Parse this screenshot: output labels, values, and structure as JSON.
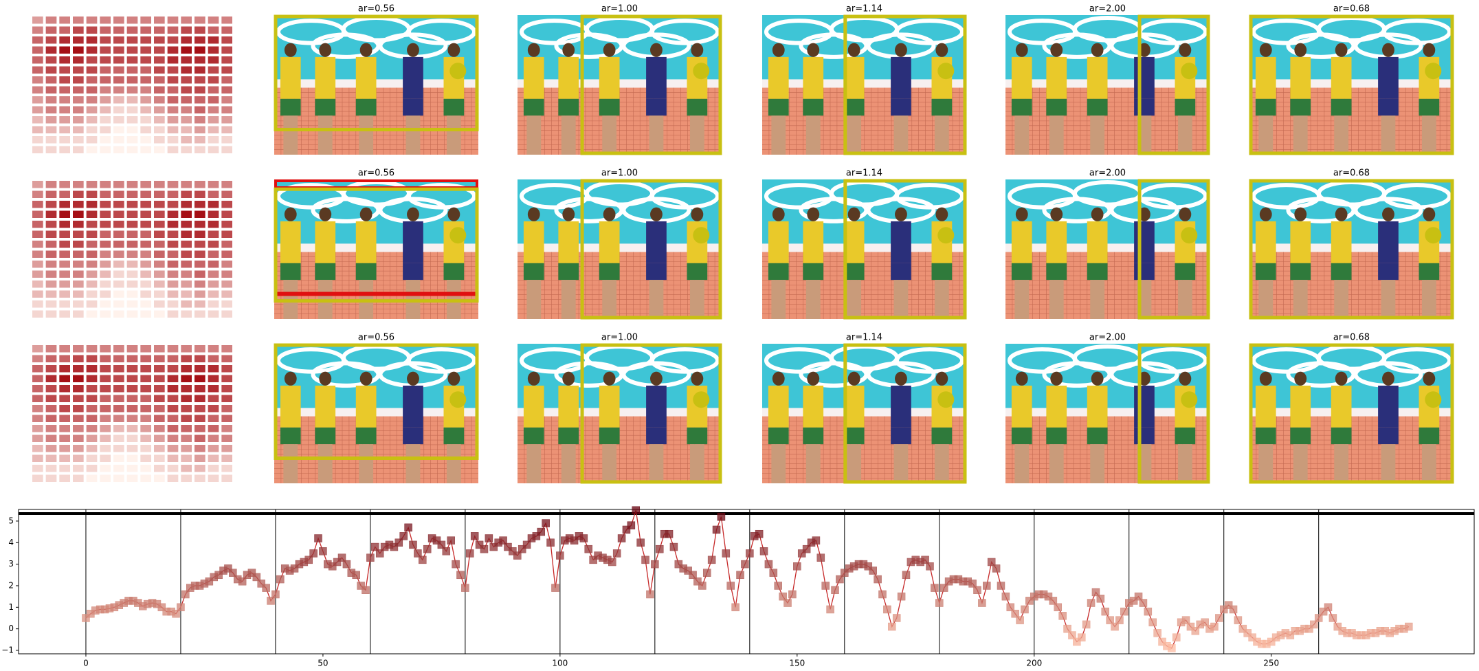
{
  "panels": {
    "rows": [
      {
        "titles": [
          "ar=0.56",
          "ar=1.00",
          "ar=1.14",
          "ar=2.00",
          "ar=0.68"
        ]
      },
      {
        "titles": [
          "ar=0.56",
          "ar=1.00",
          "ar=1.14",
          "ar=2.00",
          "ar=0.68"
        ]
      },
      {
        "titles": [
          "ar=0.56",
          "ar=1.00",
          "ar=1.14",
          "ar=2.00",
          "ar=0.68"
        ]
      }
    ]
  },
  "heatmap": {
    "colors": [
      "#fff2ec",
      "#a50f15"
    ],
    "values": [
      [
        3,
        4,
        4,
        4,
        4,
        4,
        4,
        4,
        4,
        4,
        4,
        4,
        4,
        4,
        4
      ],
      [
        4,
        5,
        5,
        6,
        6,
        5,
        5,
        5,
        5,
        5,
        5,
        6,
        6,
        5,
        5
      ],
      [
        5,
        6,
        7,
        7,
        7,
        6,
        6,
        6,
        6,
        6,
        6,
        7,
        7,
        7,
        6
      ],
      [
        5,
        7,
        8,
        8,
        7,
        6,
        6,
        6,
        6,
        6,
        7,
        8,
        8,
        7,
        6
      ],
      [
        5,
        6,
        7,
        7,
        6,
        6,
        6,
        6,
        6,
        6,
        7,
        7,
        7,
        7,
        6
      ],
      [
        5,
        6,
        6,
        6,
        6,
        5,
        5,
        5,
        5,
        6,
        6,
        7,
        7,
        6,
        6
      ],
      [
        4,
        5,
        6,
        6,
        5,
        5,
        5,
        5,
        5,
        5,
        6,
        6,
        6,
        6,
        5
      ],
      [
        4,
        5,
        5,
        5,
        5,
        4,
        4,
        4,
        4,
        5,
        5,
        6,
        6,
        5,
        5
      ],
      [
        3,
        4,
        4,
        4,
        4,
        3,
        2,
        2,
        3,
        4,
        5,
        5,
        5,
        5,
        4
      ],
      [
        3,
        4,
        4,
        4,
        3,
        2,
        1,
        1,
        2,
        3,
        4,
        4,
        5,
        4,
        4
      ],
      [
        2,
        3,
        3,
        3,
        2,
        1,
        1,
        1,
        1,
        2,
        3,
        3,
        4,
        3,
        3
      ],
      [
        2,
        2,
        2,
        2,
        1,
        1,
        0,
        0,
        1,
        1,
        2,
        2,
        3,
        2,
        2
      ],
      [
        1,
        1,
        1,
        1,
        1,
        0,
        0,
        0,
        0,
        1,
        1,
        2,
        2,
        1,
        1
      ],
      [
        1,
        1,
        1,
        1,
        0,
        0,
        0,
        0,
        0,
        0,
        1,
        1,
        1,
        1,
        1
      ]
    ]
  },
  "chart_data": {
    "type": "line",
    "color": "#c62828",
    "marker_colors": [
      "#fcbba1",
      "#67000d"
    ],
    "x": [
      0,
      1,
      2,
      3,
      4,
      5,
      6,
      7,
      8,
      9,
      10,
      11,
      12,
      13,
      14,
      15,
      16,
      17,
      18,
      19,
      20,
      21,
      22,
      23,
      24,
      25,
      26,
      27,
      28,
      29,
      30,
      31,
      32,
      33,
      34,
      35,
      36,
      37,
      38,
      39,
      40,
      41,
      42,
      43,
      44,
      45,
      46,
      47,
      48,
      49,
      50,
      51,
      52,
      53,
      54,
      55,
      56,
      57,
      58,
      59,
      60,
      61,
      62,
      63,
      64,
      65,
      66,
      67,
      68,
      69,
      70,
      71,
      72,
      73,
      74,
      75,
      76,
      77,
      78,
      79,
      80,
      81,
      82,
      83,
      84,
      85,
      86,
      87,
      88,
      89,
      90,
      91,
      92,
      93,
      94,
      95,
      96,
      97,
      98,
      99,
      100,
      101,
      102,
      103,
      104,
      105,
      106,
      107,
      108,
      109,
      110,
      111,
      112,
      113,
      114,
      115,
      116,
      117,
      118,
      119,
      120,
      121,
      122,
      123,
      124,
      125,
      126,
      127,
      128,
      129,
      130,
      131,
      132,
      133,
      134,
      135,
      136,
      137,
      138,
      139,
      140,
      141,
      142,
      143,
      144,
      145,
      146,
      147,
      148,
      149,
      150,
      151,
      152,
      153,
      154,
      155,
      156,
      157,
      158,
      159,
      160,
      161,
      162,
      163,
      164,
      165,
      166,
      167,
      168,
      169,
      170,
      171,
      172,
      173,
      174,
      175,
      176,
      177,
      178,
      179,
      180,
      181,
      182,
      183,
      184,
      185,
      186,
      187,
      188,
      189,
      190,
      191,
      192,
      193,
      194,
      195,
      196,
      197,
      198,
      199,
      200,
      201,
      202,
      203,
      204,
      205,
      206,
      207,
      208,
      209,
      210,
      211,
      212,
      213,
      214,
      215,
      216,
      217,
      218,
      219,
      220,
      221,
      222,
      223,
      224,
      225,
      226,
      227,
      228,
      229,
      230,
      231,
      232,
      233,
      234,
      235,
      236,
      237,
      238,
      239,
      240,
      241,
      242,
      243,
      244,
      245,
      246,
      247,
      248,
      249,
      250,
      251,
      252,
      253,
      254,
      255,
      256,
      257,
      258,
      259,
      260,
      261,
      262,
      263,
      264,
      265,
      266,
      267,
      268,
      269,
      270,
      271,
      272,
      273,
      274,
      275,
      276,
      277,
      278,
      279
    ],
    "values": [
      0.5,
      0.7,
      0.85,
      0.9,
      0.9,
      0.95,
      1.0,
      1.1,
      1.2,
      1.3,
      1.3,
      1.2,
      1.05,
      1.15,
      1.2,
      1.15,
      1.0,
      0.8,
      0.8,
      0.7,
      1.0,
      1.6,
      1.9,
      2.0,
      2.0,
      2.1,
      2.2,
      2.4,
      2.5,
      2.7,
      2.8,
      2.6,
      2.3,
      2.2,
      2.5,
      2.6,
      2.4,
      2.1,
      1.9,
      1.3,
      1.6,
      2.3,
      2.8,
      2.7,
      2.8,
      3.0,
      3.1,
      3.2,
      3.5,
      4.2,
      3.6,
      3.0,
      2.9,
      3.1,
      3.3,
      3.0,
      2.6,
      2.5,
      2.0,
      1.8,
      3.3,
      3.8,
      3.5,
      3.8,
      3.9,
      3.8,
      4.0,
      4.3,
      4.7,
      3.9,
      3.5,
      3.2,
      3.7,
      4.2,
      4.1,
      3.9,
      3.6,
      4.1,
      3.0,
      2.5,
      1.9,
      3.5,
      4.3,
      3.9,
      3.7,
      4.2,
      3.8,
      4.0,
      4.1,
      3.8,
      3.6,
      3.4,
      3.7,
      3.9,
      4.2,
      4.3,
      4.5,
      4.9,
      4.0,
      1.9,
      3.4,
      4.1,
      4.2,
      4.1,
      4.3,
      4.2,
      3.7,
      3.2,
      3.4,
      3.3,
      3.2,
      3.1,
      3.5,
      4.2,
      4.6,
      4.8,
      5.5,
      4.0,
      3.2,
      1.6,
      3.0,
      3.7,
      4.4,
      4.4,
      3.8,
      3.0,
      2.8,
      2.7,
      2.5,
      2.2,
      2.0,
      2.6,
      3.2,
      4.6,
      5.2,
      3.5,
      2.0,
      1.0,
      2.5,
      3.0,
      3.5,
      4.3,
      4.4,
      3.6,
      3.0,
      2.6,
      2.0,
      1.5,
      1.2,
      1.6,
      2.9,
      3.5,
      3.7,
      4.0,
      4.1,
      3.3,
      2.0,
      0.9,
      1.8,
      2.3,
      2.6,
      2.8,
      2.9,
      3.0,
      3.0,
      2.9,
      2.7,
      2.3,
      1.6,
      0.9,
      0.1,
      0.5,
      1.5,
      2.5,
      3.1,
      3.2,
      3.1,
      3.2,
      2.9,
      1.9,
      1.2,
      1.9,
      2.2,
      2.3,
      2.3,
      2.2,
      2.2,
      2.1,
      1.8,
      1.2,
      2.0,
      3.1,
      2.8,
      2.0,
      1.5,
      1.0,
      0.7,
      0.4,
      0.9,
      1.3,
      1.5,
      1.6,
      1.6,
      1.5,
      1.3,
      1.0,
      0.6,
      0.0,
      -0.3,
      -0.6,
      -0.4,
      0.2,
      1.2,
      1.7,
      1.4,
      0.8,
      0.4,
      0.1,
      0.4,
      0.8,
      1.2,
      1.3,
      1.5,
      1.2,
      0.8,
      0.3,
      -0.2,
      -0.6,
      -0.8,
      -0.9,
      -0.4,
      0.3,
      0.4,
      0.1,
      -0.1,
      0.2,
      0.3,
      0.0,
      0.1,
      0.5,
      0.9,
      1.1,
      0.9,
      0.4,
      0.0,
      -0.2,
      -0.4,
      -0.6,
      -0.7,
      -0.7,
      -0.6,
      -0.4,
      -0.3,
      -0.2,
      -0.3,
      -0.1,
      -0.1,
      0.0,
      0.0,
      0.2,
      0.5,
      0.8,
      1.0,
      0.5,
      0.1,
      -0.1,
      -0.2,
      -0.2,
      -0.3,
      -0.3,
      -0.3,
      -0.2,
      -0.2,
      -0.1,
      -0.1,
      -0.2,
      -0.1,
      0.0,
      0.0,
      0.1
    ],
    "xlim": [
      -14.2,
      292.8
    ],
    "ylim": [
      -1.16,
      5.54
    ],
    "xticks": [
      0,
      50,
      100,
      150,
      200,
      250
    ],
    "yticks": [
      {
        "value": -1,
        "label": "−1"
      },
      0,
      1,
      2,
      3,
      4,
      5
    ],
    "vlines": [
      0,
      20,
      40,
      60,
      80,
      100,
      120,
      140,
      160,
      180,
      200,
      220,
      240,
      260
    ],
    "hline": 5.35
  }
}
